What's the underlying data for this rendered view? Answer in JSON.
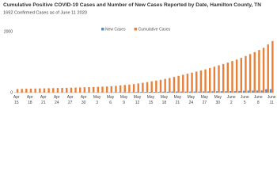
{
  "chart_data": {
    "type": "bar",
    "title": "Cumulative Positive COVID-19 Cases and Number of New Cases Reported by Date, Hamilton County, TN",
    "subtitle": "1692 Confirmed Cases as of June 11 2020",
    "categories": [
      "Apr 15",
      null,
      null,
      "Apr 18",
      null,
      null,
      "Apr 21",
      null,
      null,
      "Apr 24",
      null,
      null,
      "Apr 27",
      null,
      null,
      "Apr 30",
      null,
      null,
      "May 3",
      null,
      null,
      "May 6",
      null,
      null,
      "May 9",
      null,
      null,
      "May 12",
      null,
      null,
      "May 15",
      null,
      null,
      "May 18",
      null,
      null,
      "May 21",
      null,
      null,
      "May 24",
      null,
      null,
      "May 27",
      null,
      null,
      "May 30",
      null,
      null,
      "June 2",
      null,
      null,
      "June 5",
      null,
      null,
      "June 8",
      null,
      null,
      "June 11"
    ],
    "series": [
      {
        "name": "New Cases",
        "color": "#5b8fc9",
        "values": [
          5,
          5,
          5,
          3,
          3,
          4,
          3,
          4,
          3,
          4,
          3,
          3,
          4,
          3,
          5,
          5,
          5,
          5,
          5,
          6,
          6,
          8,
          12,
          14,
          14,
          14,
          16,
          20,
          22,
          23,
          25,
          25,
          25,
          30,
          30,
          35,
          35,
          35,
          35,
          35,
          35,
          35,
          40,
          40,
          45,
          45,
          45,
          45,
          50,
          50,
          55,
          60,
          65,
          65,
          70,
          70,
          110,
          112
        ]
      },
      {
        "name": "Cumulative Cases",
        "color": "#e8803a",
        "values": [
          118,
          123,
          128,
          131,
          134,
          138,
          141,
          145,
          148,
          152,
          155,
          158,
          162,
          165,
          170,
          175,
          180,
          185,
          190,
          196,
          202,
          210,
          222,
          236,
          250,
          264,
          280,
          300,
          322,
          345,
          370,
          395,
          420,
          450,
          480,
          515,
          550,
          585,
          620,
          655,
          690,
          725,
          765,
          805,
          850,
          895,
          940,
          985,
          1035,
          1085,
          1140,
          1200,
          1265,
          1330,
          1400,
          1470,
          1580,
          1692
        ]
      }
    ],
    "ylim": [
      0,
      2000
    ],
    "yticks": [
      0,
      2000
    ],
    "grid": false
  }
}
